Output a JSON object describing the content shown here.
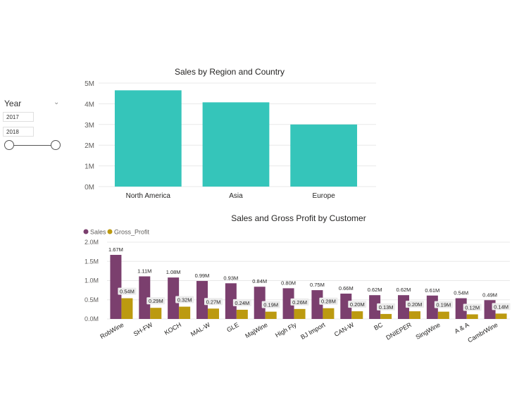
{
  "slicer": {
    "title": "Year",
    "chevron_icon": "chevron-down-icon",
    "start_value": "2017",
    "end_value": "2018"
  },
  "colors": {
    "region_bar": "#35C5BA",
    "sales": "#7B3F6E",
    "gross_profit": "#BC9A10"
  },
  "chart_data": [
    {
      "type": "bar",
      "title": "Sales by Region and Country",
      "categories": [
        "North America",
        "Asia",
        "Europe"
      ],
      "values": [
        4.65,
        4.07,
        3.0
      ],
      "ylim": [
        0,
        5
      ],
      "yticks": [
        "0M",
        "1M",
        "2M",
        "3M",
        "4M",
        "5M"
      ],
      "grid": true
    },
    {
      "type": "bar",
      "title": "Sales and Gross Profit by Customer",
      "categories": [
        "RobWine",
        "SH-FW",
        "KOCH",
        "MAL-W",
        "GLE",
        "MajWine",
        "High Fly",
        "BJ Import",
        "CAN-W",
        "BC",
        "DNIEPER",
        "SingWine",
        "A & A",
        "CambrWine"
      ],
      "series": [
        {
          "name": "Sales",
          "values": [
            1.67,
            1.11,
            1.08,
            0.99,
            0.93,
            0.84,
            0.8,
            0.75,
            0.66,
            0.62,
            0.62,
            0.61,
            0.54,
            0.49
          ],
          "labels": [
            "1.67M",
            "1.11M",
            "1.08M",
            "0.99M",
            "0.93M",
            "0.84M",
            "0.80M",
            "0.75M",
            "0.66M",
            "0.62M",
            "0.62M",
            "0.61M",
            "0.54M",
            "0.49M"
          ]
        },
        {
          "name": "Gross_Profit",
          "values": [
            0.54,
            0.29,
            0.32,
            0.27,
            0.24,
            0.19,
            0.26,
            0.28,
            0.2,
            0.13,
            0.2,
            0.19,
            0.12,
            0.14
          ],
          "labels": [
            "0.54M",
            "0.29M",
            "0.32M",
            "0.27M",
            "0.24M",
            "0.19M",
            "0.26M",
            "0.28M",
            "0.20M",
            "0.13M",
            "0.20M",
            "0.19M",
            "0.12M",
            "0.14M"
          ]
        }
      ],
      "ylim": [
        0,
        2
      ],
      "yticks": [
        "0.0M",
        "0.5M",
        "1.0M",
        "1.5M",
        "2.0M"
      ],
      "legend": "top-left",
      "grid": true
    }
  ]
}
